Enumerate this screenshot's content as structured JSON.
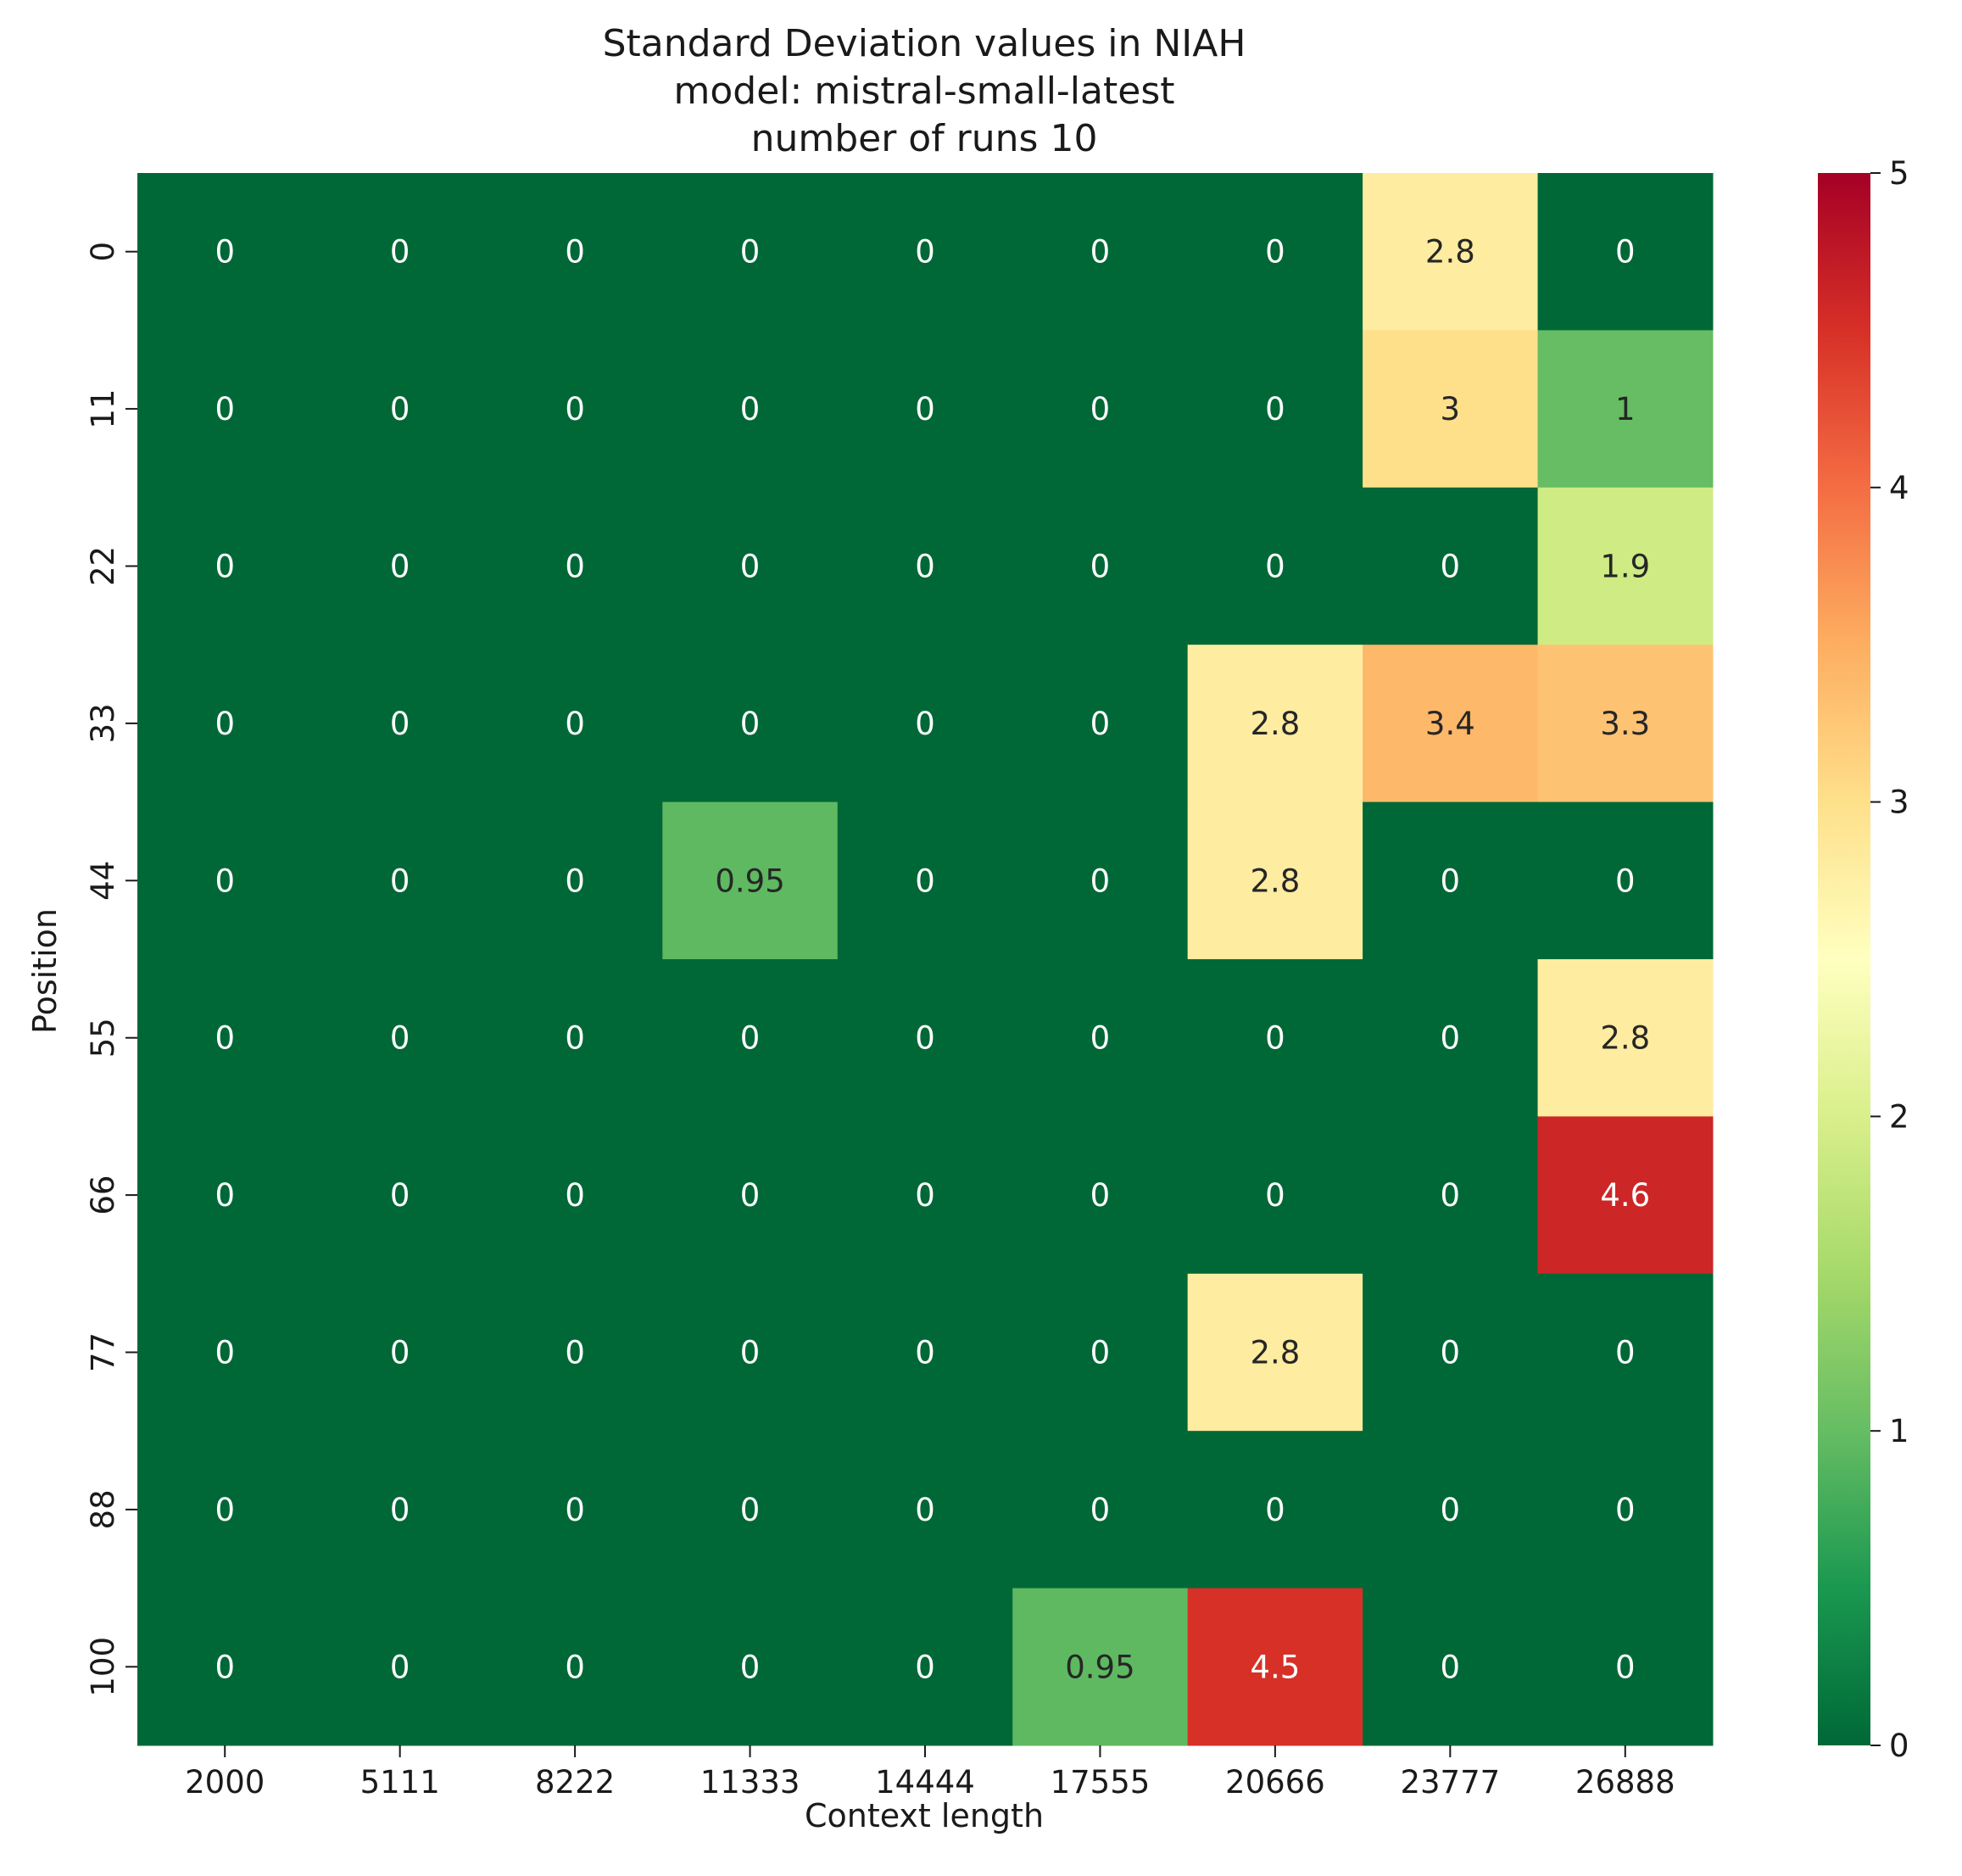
{
  "chart_data": {
    "type": "heatmap",
    "title": [
      "Standard Deviation values in NIAH",
      "model: mistral-small-latest",
      "number of runs 10"
    ],
    "xlabel": "Context length",
    "ylabel": "Position",
    "x_categories": [
      "2000",
      "5111",
      "8222",
      "11333",
      "14444",
      "17555",
      "20666",
      "23777",
      "26888"
    ],
    "y_categories": [
      "0",
      "11",
      "22",
      "33",
      "44",
      "55",
      "66",
      "77",
      "88",
      "100"
    ],
    "values": [
      [
        0,
        0,
        0,
        0,
        0,
        0,
        0,
        2.8,
        0
      ],
      [
        0,
        0,
        0,
        0,
        0,
        0,
        0,
        3,
        1
      ],
      [
        0,
        0,
        0,
        0,
        0,
        0,
        0,
        0,
        1.9
      ],
      [
        0,
        0,
        0,
        0,
        0,
        0,
        2.8,
        3.4,
        3.3
      ],
      [
        0,
        0,
        0,
        0.95,
        0,
        0,
        2.8,
        0,
        0
      ],
      [
        0,
        0,
        0,
        0,
        0,
        0,
        0,
        0,
        2.8
      ],
      [
        0,
        0,
        0,
        0,
        0,
        0,
        0,
        0,
        4.6
      ],
      [
        0,
        0,
        0,
        0,
        0,
        0,
        2.8,
        0,
        0
      ],
      [
        0,
        0,
        0,
        0,
        0,
        0,
        0,
        0,
        0
      ],
      [
        0,
        0,
        0,
        0,
        0,
        0.95,
        4.5,
        0,
        0
      ]
    ],
    "colorbar": {
      "range": [
        0,
        5
      ],
      "ticks": [
        "0",
        "1",
        "2",
        "3",
        "4",
        "5"
      ],
      "colormap": "RdYlGn_r"
    },
    "annotated": true,
    "grid": false
  }
}
